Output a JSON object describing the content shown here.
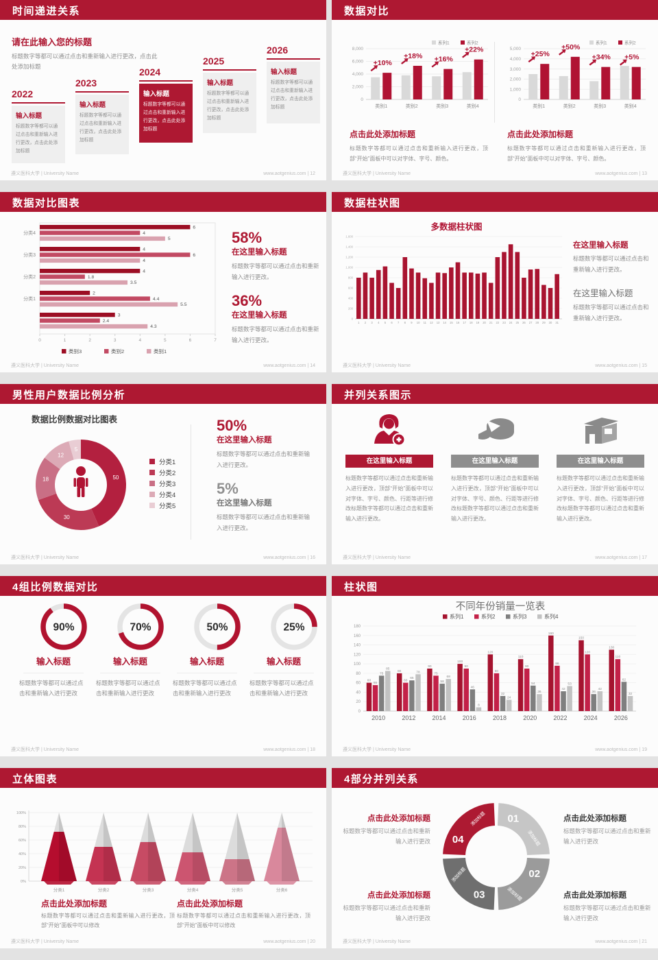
{
  "page": {
    "bg": "#e3e3e3",
    "accent": "#ae1832",
    "footer_left": "遵义医科大学 | University Name",
    "footer_site": "www.aotgenius.com",
    "footer_sep": "|"
  },
  "slides": [
    {
      "id": "timeline",
      "page_no": "12",
      "title": "时间递进关系",
      "intro": {
        "title": "请在此输入您的标题",
        "body": "标题数字等都可以通过点击和重新输入进行更改，点击此处添加标题"
      },
      "item": {
        "title": "输入标题",
        "body": "标题数字等都可以通过点击和重新输入进行更改，点击此处添加标题"
      },
      "chart_data": {
        "type": "timeline",
        "categories": [
          "2022",
          "2023",
          "2024",
          "2025",
          "2026"
        ],
        "highlight": "2024"
      }
    },
    {
      "id": "dual-bars",
      "page_no": "13",
      "title": "数据对比",
      "caption": {
        "title": "点击此处添加标题",
        "body": "标题数字等都可以通过点击和重新输入进行更改，顶部“开始”面板中可以对字体、字号、颜色。"
      },
      "marker_icon": "brush-up-arrow-icon",
      "chart_data": [
        {
          "type": "bar",
          "categories": [
            "类别1",
            "类别2",
            "类别3",
            "类别4"
          ],
          "series": [
            {
              "name": "系列1",
              "color": "#d9d9d9",
              "values": [
                3500,
                3800,
                3650,
                4300
              ]
            },
            {
              "name": "系列2",
              "color": "#b01333",
              "values": [
                4200,
                5300,
                4800,
                6300
              ]
            }
          ],
          "growth_labels": [
            "+10%",
            "+18%",
            "+16%",
            "+22%"
          ],
          "ylim": [
            0,
            8000
          ],
          "yticks": [
            "0",
            "2,000",
            "4,000",
            "6,000",
            "8,000"
          ],
          "legend_position": "top-right"
        },
        {
          "type": "bar",
          "categories": [
            "类别1",
            "类别2",
            "类别3",
            "类别4"
          ],
          "series": [
            {
              "name": "系列1",
              "color": "#d9d9d9",
              "values": [
                2500,
                2300,
                1800,
                3300
              ]
            },
            {
              "name": "系列2",
              "color": "#b01333",
              "values": [
                3500,
                4200,
                3200,
                3200
              ]
            }
          ],
          "growth_labels": [
            "+25%",
            "+50%",
            "+34%",
            "+5%"
          ],
          "ylim": [
            0,
            5000
          ],
          "yticks": [
            "0",
            "1,000",
            "2,000",
            "3,000",
            "4,000",
            "5,000"
          ],
          "legend_position": "top-right"
        }
      ]
    },
    {
      "id": "hbar",
      "page_no": "14",
      "title": "数据对比图表",
      "stats": [
        {
          "pct": "58%",
          "title": "在这里输入标题",
          "body": "标题数字等都可以通过点击和重新输入进行更改。",
          "accent": true
        },
        {
          "pct": "36%",
          "title": "在这里输入标题",
          "body": "标题数字等都可以通过点击和重新输入进行更改。",
          "accent": true
        }
      ],
      "chart_data": {
        "type": "bar-horizontal",
        "categories": [
          "分类4",
          "分类3",
          "分类2",
          "分类1",
          ""
        ],
        "series": [
          {
            "name": "类别3",
            "color": "#9c0e24",
            "values": [
              6,
              4,
              4,
              2,
              3
            ]
          },
          {
            "name": "类别2",
            "color": "#c24a63",
            "values": [
              4,
              6,
              1.8,
              4.4,
              2.4
            ]
          },
          {
            "name": "类别1",
            "color": "#d9a2af",
            "values": [
              5,
              4,
              3.5,
              5.5,
              4.3
            ]
          }
        ],
        "xlim": [
          0,
          7
        ],
        "xticks": [
          "0",
          "1",
          "2",
          "3",
          "4",
          "5",
          "6",
          "7"
        ],
        "legend_position": "bottom"
      }
    },
    {
      "id": "multi-bar",
      "page_no": "15",
      "title": "数据柱状图",
      "chart_title": "多数据柱状图",
      "stats": [
        {
          "title": "在这里输入标题",
          "body": "标题数字等都可以通过点击和重新输入进行更改。",
          "accent": true
        },
        {
          "title": "在这里输入标题",
          "body": "标题数字等都可以通过点击和重新输入进行更改。",
          "accent": false
        }
      ],
      "chart_data": {
        "type": "bar",
        "color": "#a91430",
        "categories": [
          "1",
          "2",
          "3",
          "4",
          "5",
          "6",
          "7",
          "8",
          "9",
          "10",
          "11",
          "12",
          "13",
          "14",
          "15",
          "16",
          "17",
          "18",
          "19",
          "20",
          "21",
          "22",
          "23",
          "24",
          "25",
          "26",
          "27",
          "28",
          "29",
          "30",
          "31"
        ],
        "values": [
          800,
          900,
          800,
          950,
          1020,
          700,
          600,
          1200,
          980,
          900,
          790,
          700,
          900,
          890,
          1000,
          1100,
          900,
          900,
          880,
          900,
          700,
          1200,
          1300,
          1450,
          1300,
          800,
          960,
          970,
          660,
          600,
          870
        ],
        "ylim": [
          0,
          1600
        ],
        "yticks": [
          "0",
          "200",
          "400",
          "600",
          "800",
          "1,000",
          "1,200",
          "1,400",
          "1,600"
        ]
      }
    },
    {
      "id": "donut",
      "page_no": "16",
      "title": "男性用户数据比例分析",
      "chart_title": "数据比例数据对比图表",
      "stats": [
        {
          "pct": "50%",
          "title": "在这里输入标题",
          "body": "标题数字等都可以通过点击和重新输入进行更改。",
          "accent": true
        },
        {
          "pct": "5%",
          "title": "在这里输入标题",
          "body": "标题数字等都可以通过点击和重新输入进行更改。",
          "accent": false
        }
      ],
      "chart_data": {
        "type": "pie",
        "donut": true,
        "center_icon": "male-person-icon",
        "labels": [
          "分类1",
          "分类2",
          "分类3",
          "分类4",
          "分类5"
        ],
        "values": [
          50,
          30,
          18,
          12,
          5
        ],
        "colors": [
          "#b3203f",
          "#bc3a55",
          "#c96f85",
          "#dcaab6",
          "#e9cdd4"
        ]
      }
    },
    {
      "id": "three-columns",
      "page_no": "17",
      "title": "并列关系图示",
      "columns": [
        {
          "icon": "medical-person-plus-icon",
          "accent": true,
          "banner": "在这里输入标题",
          "body": "标题数字等都可以通过点击和重新输入进行更改，顶部“开始”面板中可以对字体、字号、颜色、行距等进行修改标题数字等都可以通过点击和重新输入进行更改。"
        },
        {
          "icon": "pie-3d-icon",
          "accent": false,
          "banner": "在这里输入标题",
          "body": "标题数字等都可以通过点击和重新输入进行更改，顶部“开始”面板中可以对字体、字号、颜色、行距等进行修改标题数字等都可以通过点击和重新输入进行更改。"
        },
        {
          "icon": "building-icon",
          "accent": false,
          "banner": "在这里输入标题",
          "body": "标题数字等都可以通过点击和重新输入进行更改，顶部“开始”面板中可以对字体、字号、颜色、行距等进行修改标题数字等都可以通过点击和重新输入进行更改。"
        }
      ]
    },
    {
      "id": "rings",
      "page_no": "18",
      "title": "4组比例数据对比",
      "item_title": "输入标题",
      "item_body": "标题数字等都可以通过点击和重新输入进行更改",
      "chart_data": {
        "type": "donut-progress",
        "values": [
          90,
          70,
          50,
          25
        ],
        "labels": [
          "90%",
          "70%",
          "50%",
          "25%"
        ]
      }
    },
    {
      "id": "grouped-bars",
      "page_no": "19",
      "title": "柱状图",
      "chart_title": "不同年份销量一览表",
      "chart_data": {
        "type": "bar",
        "legend_position": "top",
        "categories": [
          "2010",
          "2012",
          "2014",
          "2016",
          "2018",
          "2020",
          "2022",
          "2024",
          "2026"
        ],
        "series": [
          {
            "name": "系列1",
            "color": "#a5132f",
            "values": [
              60,
              80,
              90,
              100,
              120,
              110,
              160,
              150,
              130
            ]
          },
          {
            "name": "系列2",
            "color": "#c32148",
            "values": [
              55,
              60,
              75,
              90,
              80,
              90,
              96,
              120,
              110
            ]
          },
          {
            "name": "系列3",
            "color": "#7f7f7f",
            "values": [
              75,
              65,
              58,
              46,
              32,
              54,
              42,
              36,
              62
            ]
          },
          {
            "name": "系列4",
            "color": "#c2c2c2",
            "values": [
              85,
              78,
              68,
              8,
              24,
              36,
              53,
              42,
              32
            ]
          }
        ],
        "ylim": [
          0,
          180
        ],
        "yticks": [
          "0",
          "20",
          "40",
          "60",
          "80",
          "100",
          "120",
          "140",
          "160",
          "180"
        ]
      }
    },
    {
      "id": "cones",
      "page_no": "20",
      "title": "立体图表",
      "captions": [
        {
          "title": "点击此处添加标题",
          "body": "标题数字等都可以通过点击和重新输入进行更改，顶部“开始”面板中可以修改"
        },
        {
          "title": "点击此处添加标题",
          "body": "标题数字等都可以通过点击和重新输入进行更改，顶部“开始”面板中可以修改"
        }
      ],
      "chart_data": {
        "type": "cone",
        "categories": [
          "分类1",
          "分类2",
          "分类3",
          "分类4",
          "分类5",
          "分类6"
        ],
        "values_pct": [
          72,
          50,
          57,
          42,
          32,
          78
        ],
        "colors": [
          "#b50d2e",
          "#c43352",
          "#c74b64",
          "#cc5570",
          "#cc7487",
          "#d9889c"
        ],
        "yticks": [
          "0%",
          "20%",
          "40%",
          "60%",
          "80%",
          "100%"
        ]
      }
    },
    {
      "id": "wheel",
      "page_no": "21",
      "title": "4部分并列关系",
      "captions": [
        {
          "title": "点击此处添加标题",
          "body": "标题数字等都可以通过点击和重新输入进行更改",
          "accent": true,
          "side": "left"
        },
        {
          "title": "点击此处添加标题",
          "body": "标题数字等都可以通过点击和重新输入进行更改",
          "accent": false,
          "side": "right"
        },
        {
          "title": "点击此处添加标题",
          "body": "标题数字等都可以通过点击和重新输入进行更改",
          "accent": true,
          "side": "left"
        },
        {
          "title": "点击此处添加标题",
          "body": "标题数字等都可以通过点击和重新输入进行更改",
          "accent": false,
          "side": "right"
        }
      ],
      "chart_data": {
        "type": "segmented-ring",
        "items": [
          {
            "num": "01",
            "label": "添加标题",
            "color": "#c6c6c6"
          },
          {
            "num": "02",
            "label": "添加标题",
            "color": "#9b9b9b"
          },
          {
            "num": "03",
            "label": "添加标题",
            "color": "#6f6f6f"
          },
          {
            "num": "04",
            "label": "添加标题",
            "color": "#ad1a32"
          }
        ]
      }
    }
  ]
}
